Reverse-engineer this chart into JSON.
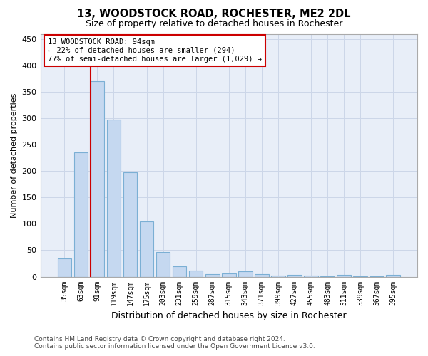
{
  "title1": "13, WOODSTOCK ROAD, ROCHESTER, ME2 2DL",
  "title2": "Size of property relative to detached houses in Rochester",
  "xlabel": "Distribution of detached houses by size in Rochester",
  "ylabel": "Number of detached properties",
  "categories": [
    "35sqm",
    "63sqm",
    "91sqm",
    "119sqm",
    "147sqm",
    "175sqm",
    "203sqm",
    "231sqm",
    "259sqm",
    "287sqm",
    "315sqm",
    "343sqm",
    "371sqm",
    "399sqm",
    "427sqm",
    "455sqm",
    "483sqm",
    "511sqm",
    "539sqm",
    "567sqm",
    "595sqm"
  ],
  "values": [
    35,
    235,
    370,
    298,
    198,
    104,
    46,
    20,
    12,
    5,
    6,
    10,
    5,
    2,
    4,
    2,
    1,
    3,
    1,
    1,
    3
  ],
  "bar_color": "#c5d8f0",
  "bar_edge_color": "#7bafd4",
  "marker_label_line1": "13 WOODSTOCK ROAD: 94sqm",
  "marker_label_line2": "← 22% of detached houses are smaller (294)",
  "marker_label_line3": "77% of semi-detached houses are larger (1,029) →",
  "annotation_box_color": "#ffffff",
  "annotation_box_edge_color": "#cc0000",
  "marker_line_color": "#cc0000",
  "grid_color": "#ccd6e8",
  "bg_color": "#e8eef8",
  "ylim": [
    0,
    460
  ],
  "yticks": [
    0,
    50,
    100,
    150,
    200,
    250,
    300,
    350,
    400,
    450
  ],
  "footer1": "Contains HM Land Registry data © Crown copyright and database right 2024.",
  "footer2": "Contains public sector information licensed under the Open Government Licence v3.0."
}
